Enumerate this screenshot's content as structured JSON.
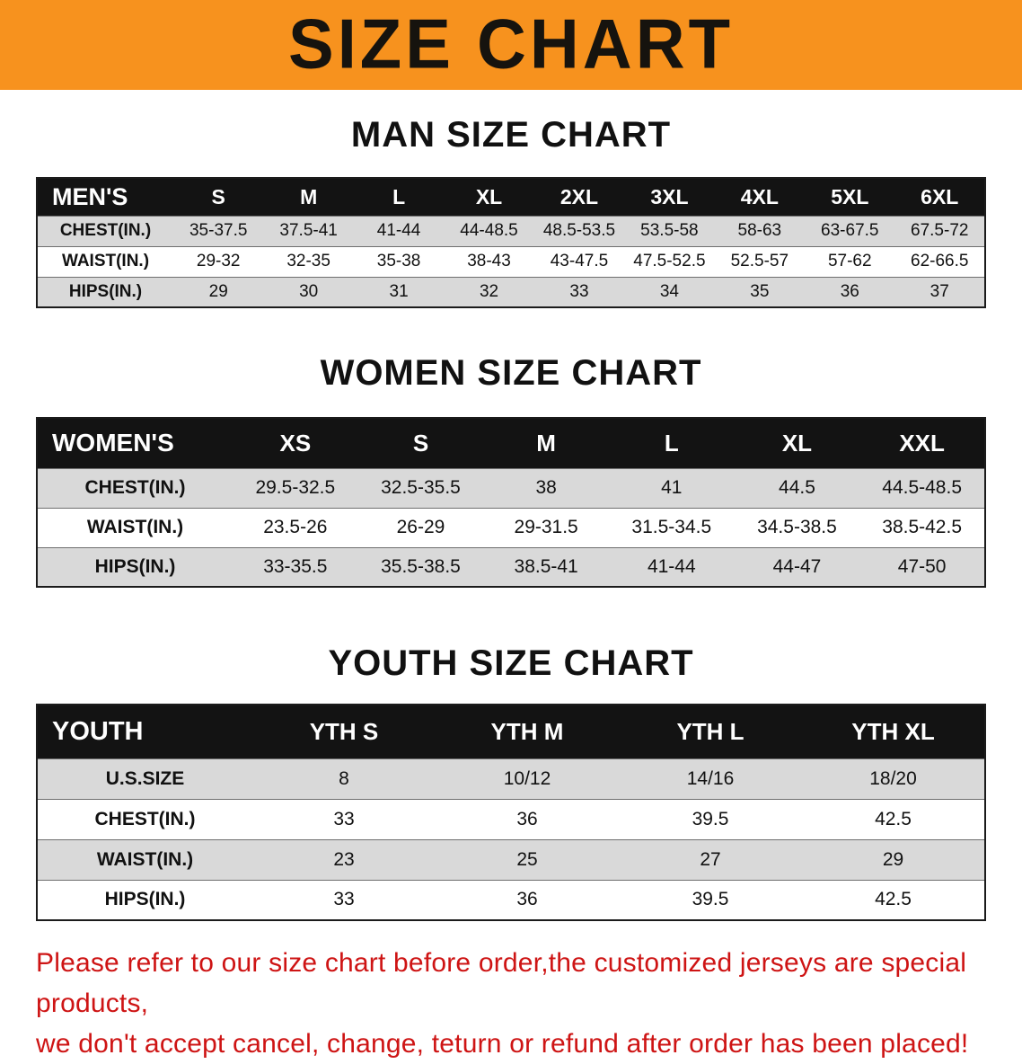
{
  "banner": {
    "title": "SIZE CHART",
    "bg_color": "#f7921e"
  },
  "men": {
    "heading": "MAN SIZE CHART",
    "label": "MEN'S",
    "sizes": [
      "S",
      "M",
      "L",
      "XL",
      "2XL",
      "3XL",
      "4XL",
      "5XL",
      "6XL"
    ],
    "rows": [
      {
        "label": "CHEST(IN.)",
        "values": [
          "35-37.5",
          "37.5-41",
          "41-44",
          "44-48.5",
          "48.5-53.5",
          "53.5-58",
          "58-63",
          "63-67.5",
          "67.5-72"
        ]
      },
      {
        "label": "WAIST(IN.)",
        "values": [
          "29-32",
          "32-35",
          "35-38",
          "38-43",
          "43-47.5",
          "47.5-52.5",
          "52.5-57",
          "57-62",
          "62-66.5"
        ]
      },
      {
        "label": "HIPS(IN.)",
        "values": [
          "29",
          "30",
          "31",
          "32",
          "33",
          "34",
          "35",
          "36",
          "37"
        ]
      }
    ]
  },
  "women": {
    "heading": "WOMEN SIZE CHART",
    "label": "WOMEN'S",
    "sizes": [
      "XS",
      "S",
      "M",
      "L",
      "XL",
      "XXL"
    ],
    "rows": [
      {
        "label": "CHEST(IN.)",
        "values": [
          "29.5-32.5",
          "32.5-35.5",
          "38",
          "41",
          "44.5",
          "44.5-48.5"
        ]
      },
      {
        "label": "WAIST(IN.)",
        "values": [
          "23.5-26",
          "26-29",
          "29-31.5",
          "31.5-34.5",
          "34.5-38.5",
          "38.5-42.5"
        ]
      },
      {
        "label": "HIPS(IN.)",
        "values": [
          "33-35.5",
          "35.5-38.5",
          "38.5-41",
          "41-44",
          "44-47",
          "47-50"
        ]
      }
    ]
  },
  "youth": {
    "heading": "YOUTH SIZE CHART",
    "label": "YOUTH",
    "sizes": [
      "YTH S",
      "YTH M",
      "YTH L",
      "YTH XL"
    ],
    "rows": [
      {
        "label": "U.S.SIZE",
        "values": [
          "8",
          "10/12",
          "14/16",
          "18/20"
        ]
      },
      {
        "label": "CHEST(IN.)",
        "values": [
          "33",
          "36",
          "39.5",
          "42.5"
        ]
      },
      {
        "label": "WAIST(IN.)",
        "values": [
          "23",
          "25",
          "27",
          "29"
        ]
      },
      {
        "label": "HIPS(IN.)",
        "values": [
          "33",
          "36",
          "39.5",
          "42.5"
        ]
      }
    ]
  },
  "disclaimer": {
    "line1": "Please refer to our size chart before order,the customized jerseys are special products,",
    "line2": "we don't accept cancel, change, teturn or refund after order has been placed!"
  },
  "colors": {
    "banner_orange": "#f7921e",
    "header_black": "#131313",
    "stripe_gray": "#d9d9d9",
    "disclaimer_red": "#ce1414"
  }
}
